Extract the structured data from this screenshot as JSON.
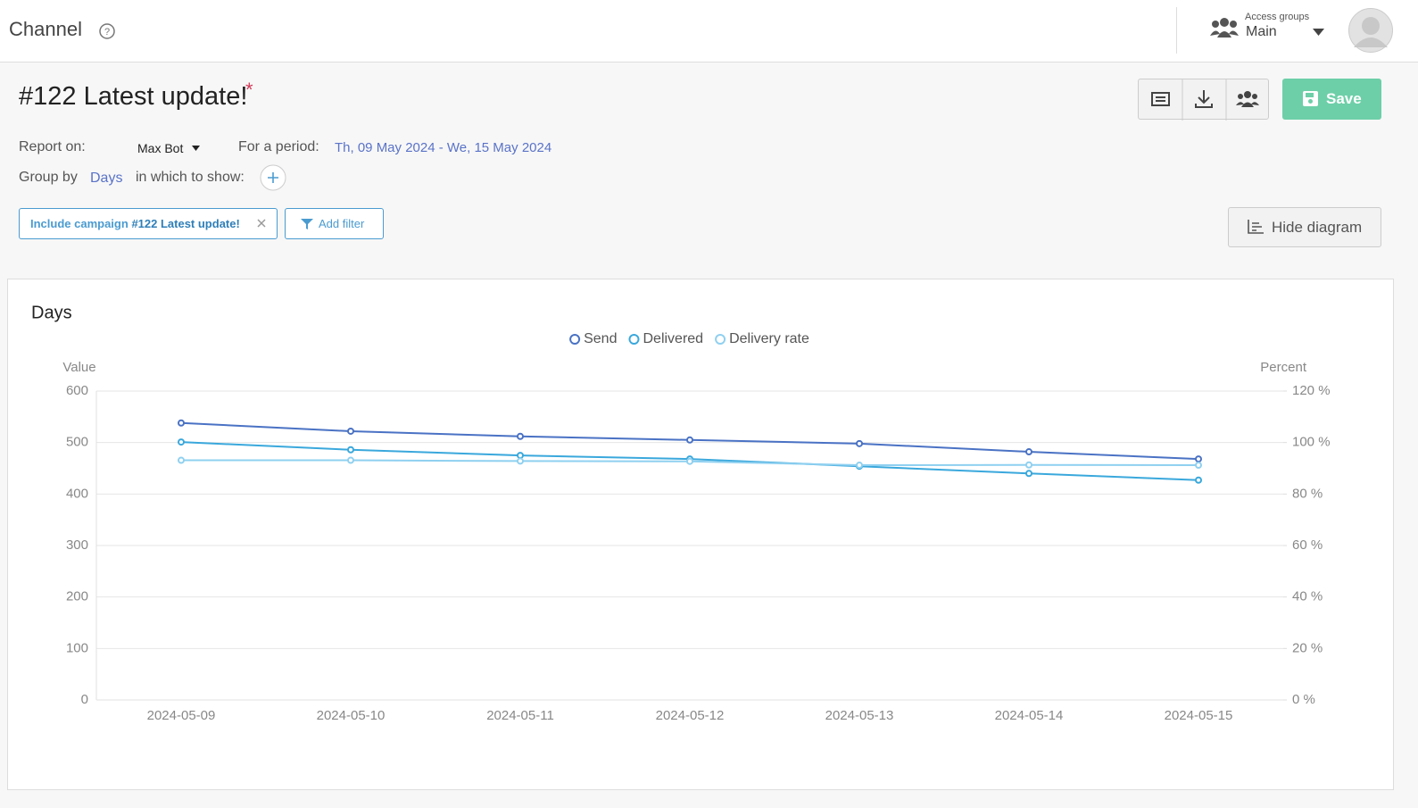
{
  "header": {
    "title": "Channel",
    "access_groups_label": "Access groups",
    "access_group": "Main"
  },
  "report": {
    "title": "#122 Latest update!",
    "required_mark": "*",
    "save": "Save",
    "report_on_label": "Report on:",
    "report_on_value": "Max Bot",
    "period_label": "For a period:",
    "period_value": "Th, 09 May 2024 - We, 15 May 2024",
    "group_by_label": "Group by",
    "group_by_value": "Days",
    "show_label": "in which to show:",
    "filter_prefix": "Include campaign",
    "filter_value": "#122 Latest update!",
    "add_filter": "Add filter",
    "hide_diagram": "Hide diagram"
  },
  "chart_data": {
    "type": "line",
    "title": "Days",
    "y_label": "Value",
    "y2_label": "Percent",
    "categories": [
      "2024-05-09",
      "2024-05-10",
      "2024-05-11",
      "2024-05-12",
      "2024-05-13",
      "2024-05-14",
      "2024-05-15"
    ],
    "series": [
      {
        "name": "Send",
        "color": "#4a72c4",
        "values": [
          538,
          522,
          512,
          505,
          498,
          482,
          468
        ]
      },
      {
        "name": "Delivered",
        "color": "#3aa8dc",
        "values": [
          501,
          486,
          475,
          468,
          454,
          440,
          427
        ]
      },
      {
        "name": "Delivery rate",
        "color": "#8fd0f0",
        "axis": "y2",
        "values": [
          93.1,
          93.1,
          92.8,
          92.7,
          91.2,
          91.3,
          91.2
        ]
      }
    ],
    "ylim": [
      0,
      600
    ],
    "yticks": [
      0,
      100,
      200,
      300,
      400,
      500,
      600
    ],
    "y2lim": [
      0,
      120
    ],
    "y2ticks": [
      {
        "value": 0,
        "label": "0 %"
      },
      {
        "value": 20,
        "label": "20 %"
      },
      {
        "value": 40,
        "label": "40 %"
      },
      {
        "value": 60,
        "label": "60 %"
      },
      {
        "value": 80,
        "label": "80 %"
      },
      {
        "value": 100,
        "label": "100 %"
      },
      {
        "value": 120,
        "label": "120 %"
      }
    ],
    "grid": true,
    "legend": "top"
  }
}
